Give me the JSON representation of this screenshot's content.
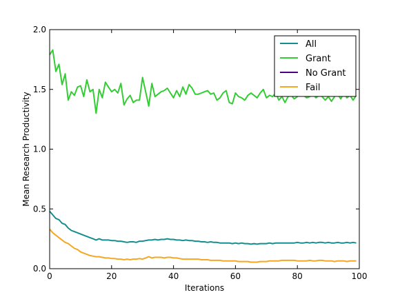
{
  "chart_data": {
    "type": "line",
    "xlabel": "Iterations",
    "ylabel": "Mean Research Productivity",
    "xlim": [
      0,
      100
    ],
    "ylim": [
      0.0,
      2.0
    ],
    "xticks": [
      0,
      20,
      40,
      60,
      80,
      100
    ],
    "xtick_labels": [
      "0",
      "20",
      "40",
      "60",
      "80",
      "100"
    ],
    "yticks": [
      0.0,
      0.5,
      1.0,
      1.5,
      2.0
    ],
    "ytick_labels": [
      "0.0",
      "0.5",
      "1.0",
      "1.5",
      "2.0"
    ],
    "grid": false,
    "legend_position": "upper-right",
    "series": [
      {
        "name": "All",
        "color": "#138D8D",
        "x": [
          0,
          1,
          2,
          3,
          4,
          5,
          6,
          7,
          8,
          9,
          10,
          11,
          12,
          13,
          14,
          15,
          16,
          17,
          18,
          19,
          20,
          21,
          22,
          23,
          24,
          25,
          26,
          27,
          28,
          29,
          30,
          31,
          32,
          33,
          34,
          35,
          36,
          37,
          38,
          39,
          40,
          41,
          42,
          43,
          44,
          45,
          46,
          47,
          48,
          49,
          50,
          51,
          52,
          53,
          54,
          55,
          56,
          57,
          58,
          59,
          60,
          61,
          62,
          63,
          64,
          65,
          66,
          67,
          68,
          69,
          70,
          71,
          72,
          73,
          74,
          75,
          76,
          77,
          78,
          79,
          80,
          81,
          82,
          83,
          84,
          85,
          86,
          87,
          88,
          89,
          90,
          91,
          92,
          93,
          94,
          95,
          96,
          97,
          98,
          99
        ],
        "y": [
          0.48,
          0.45,
          0.42,
          0.41,
          0.38,
          0.37,
          0.34,
          0.32,
          0.31,
          0.3,
          0.29,
          0.28,
          0.27,
          0.26,
          0.25,
          0.24,
          0.25,
          0.24,
          0.24,
          0.24,
          0.235,
          0.235,
          0.23,
          0.23,
          0.225,
          0.22,
          0.225,
          0.225,
          0.22,
          0.23,
          0.23,
          0.235,
          0.24,
          0.24,
          0.245,
          0.24,
          0.245,
          0.245,
          0.25,
          0.245,
          0.245,
          0.24,
          0.24,
          0.235,
          0.24,
          0.235,
          0.235,
          0.23,
          0.23,
          0.225,
          0.225,
          0.22,
          0.225,
          0.22,
          0.22,
          0.215,
          0.215,
          0.215,
          0.215,
          0.21,
          0.215,
          0.21,
          0.215,
          0.21,
          0.21,
          0.205,
          0.21,
          0.205,
          0.21,
          0.21,
          0.21,
          0.215,
          0.21,
          0.215,
          0.215,
          0.215,
          0.215,
          0.215,
          0.215,
          0.215,
          0.22,
          0.215,
          0.215,
          0.22,
          0.215,
          0.22,
          0.215,
          0.22,
          0.22,
          0.215,
          0.22,
          0.215,
          0.215,
          0.22,
          0.215,
          0.215,
          0.22,
          0.215,
          0.22,
          0.215
        ]
      },
      {
        "name": "Grant",
        "color": "#33CC33",
        "x": [
          0,
          1,
          2,
          3,
          4,
          5,
          6,
          7,
          8,
          9,
          10,
          11,
          12,
          13,
          14,
          15,
          16,
          17,
          18,
          19,
          20,
          21,
          22,
          23,
          24,
          25,
          26,
          27,
          28,
          29,
          30,
          31,
          32,
          33,
          34,
          35,
          36,
          37,
          38,
          39,
          40,
          41,
          42,
          43,
          44,
          45,
          46,
          47,
          48,
          49,
          50,
          51,
          52,
          53,
          54,
          55,
          56,
          57,
          58,
          59,
          60,
          61,
          62,
          63,
          64,
          65,
          66,
          67,
          68,
          69,
          70,
          71,
          72,
          73,
          74,
          75,
          76,
          77,
          78,
          79,
          80,
          81,
          82,
          83,
          84,
          85,
          86,
          87,
          88,
          89,
          90,
          91,
          92,
          93,
          94,
          95,
          96,
          97,
          98,
          99
        ],
        "y": [
          1.79,
          1.83,
          1.65,
          1.71,
          1.54,
          1.63,
          1.41,
          1.48,
          1.45,
          1.52,
          1.53,
          1.44,
          1.58,
          1.48,
          1.5,
          1.3,
          1.5,
          1.43,
          1.56,
          1.52,
          1.48,
          1.5,
          1.47,
          1.55,
          1.37,
          1.42,
          1.45,
          1.39,
          1.41,
          1.41,
          1.6,
          1.48,
          1.36,
          1.55,
          1.44,
          1.46,
          1.48,
          1.49,
          1.51,
          1.47,
          1.43,
          1.49,
          1.44,
          1.52,
          1.46,
          1.54,
          1.51,
          1.46,
          1.46,
          1.47,
          1.48,
          1.49,
          1.46,
          1.47,
          1.41,
          1.43,
          1.47,
          1.49,
          1.39,
          1.38,
          1.47,
          1.44,
          1.43,
          1.41,
          1.45,
          1.47,
          1.45,
          1.43,
          1.47,
          1.5,
          1.43,
          1.45,
          1.44,
          1.47,
          1.41,
          1.44,
          1.39,
          1.44,
          1.45,
          1.42,
          1.44,
          1.46,
          1.45,
          1.43,
          1.44,
          1.46,
          1.43,
          1.45,
          1.44,
          1.41,
          1.44,
          1.4,
          1.44,
          1.46,
          1.42,
          1.47,
          1.43,
          1.45,
          1.41,
          1.45
        ]
      },
      {
        "name": "No Grant",
        "color": "#4B0082",
        "x": [],
        "y": []
      },
      {
        "name": "Fail",
        "color": "#F5A623",
        "x": [
          0,
          1,
          2,
          3,
          4,
          5,
          6,
          7,
          8,
          9,
          10,
          11,
          12,
          13,
          14,
          15,
          16,
          17,
          18,
          19,
          20,
          21,
          22,
          23,
          24,
          25,
          26,
          27,
          28,
          29,
          30,
          31,
          32,
          33,
          34,
          35,
          36,
          37,
          38,
          39,
          40,
          41,
          42,
          43,
          44,
          45,
          46,
          47,
          48,
          49,
          50,
          51,
          52,
          53,
          54,
          55,
          56,
          57,
          58,
          59,
          60,
          61,
          62,
          63,
          64,
          65,
          66,
          67,
          68,
          69,
          70,
          71,
          72,
          73,
          74,
          75,
          76,
          77,
          78,
          79,
          80,
          81,
          82,
          83,
          84,
          85,
          86,
          87,
          88,
          89,
          90,
          91,
          92,
          93,
          94,
          95,
          96,
          97,
          98,
          99
        ],
        "y": [
          0.33,
          0.3,
          0.28,
          0.26,
          0.24,
          0.22,
          0.21,
          0.19,
          0.17,
          0.16,
          0.14,
          0.13,
          0.12,
          0.11,
          0.105,
          0.1,
          0.1,
          0.095,
          0.09,
          0.09,
          0.085,
          0.085,
          0.08,
          0.08,
          0.075,
          0.08,
          0.075,
          0.08,
          0.08,
          0.085,
          0.08,
          0.09,
          0.1,
          0.09,
          0.095,
          0.095,
          0.095,
          0.09,
          0.095,
          0.095,
          0.09,
          0.09,
          0.085,
          0.08,
          0.08,
          0.08,
          0.08,
          0.08,
          0.08,
          0.075,
          0.075,
          0.075,
          0.07,
          0.07,
          0.07,
          0.07,
          0.065,
          0.065,
          0.065,
          0.065,
          0.065,
          0.06,
          0.06,
          0.06,
          0.06,
          0.055,
          0.055,
          0.055,
          0.06,
          0.06,
          0.06,
          0.065,
          0.065,
          0.065,
          0.065,
          0.07,
          0.07,
          0.07,
          0.07,
          0.07,
          0.065,
          0.065,
          0.065,
          0.065,
          0.07,
          0.065,
          0.065,
          0.07,
          0.07,
          0.065,
          0.065,
          0.065,
          0.06,
          0.065,
          0.065,
          0.065,
          0.06,
          0.065,
          0.065,
          0.065
        ]
      }
    ]
  }
}
